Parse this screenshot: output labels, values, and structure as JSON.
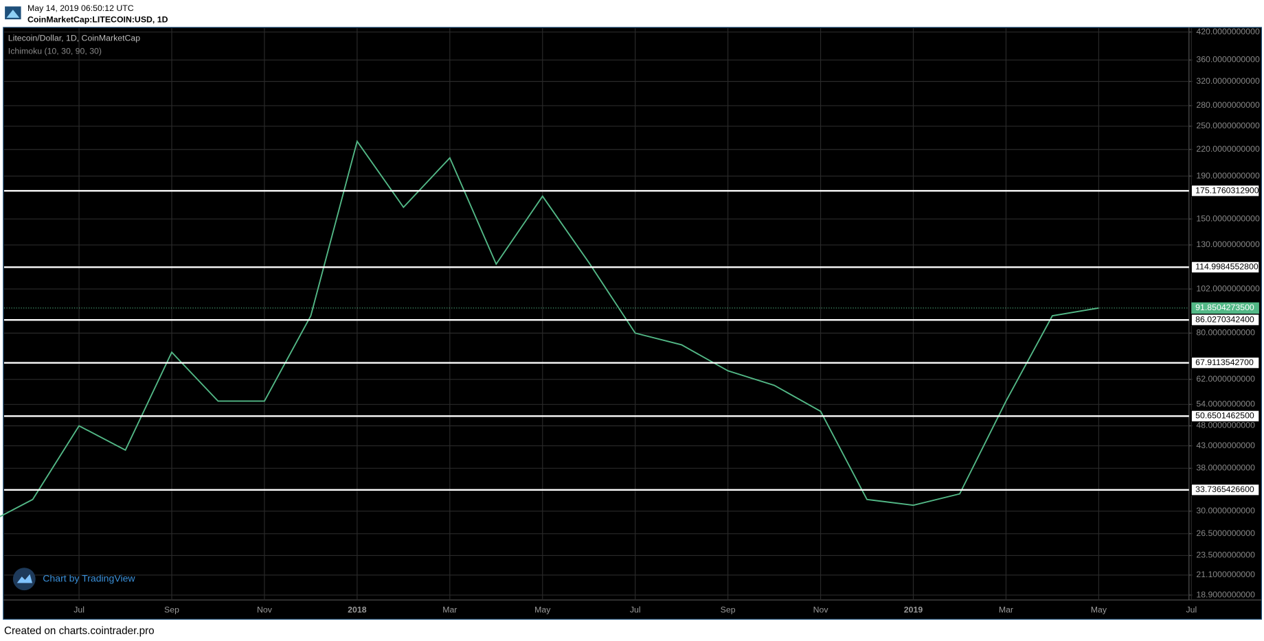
{
  "header": {
    "timestamp": "May 14, 2019 06:50:12 UTC",
    "symbol": "CoinMarketCap:LITECOIN:USD, 1D"
  },
  "footer": "Created on charts.cointrader.pro",
  "watermark": "Chart by TradingView",
  "chart_data": {
    "type": "line",
    "title": "Litecoin/Dollar, 1D, CoinMarketCap",
    "subtitle": "Ichimoku (10, 30, 90, 30)",
    "x": [
      "2017-05",
      "2017-06",
      "2017-07",
      "2017-08",
      "2017-09",
      "2017-10",
      "2017-11",
      "2017-12",
      "2018-01",
      "2018-02",
      "2018-03",
      "2018-04",
      "2018-05",
      "2018-06",
      "2018-07",
      "2018-08",
      "2018-09",
      "2018-10",
      "2018-11",
      "2018-12",
      "2019-01",
      "2019-02",
      "2019-03",
      "2019-04",
      "2019-05"
    ],
    "series": [
      {
        "name": "LTCUSD",
        "color": "#53b987",
        "values": [
          28,
          32,
          48,
          42,
          72,
          55,
          55,
          88,
          230,
          160,
          210,
          117,
          170,
          118,
          80,
          75,
          65,
          60,
          52,
          32,
          31,
          33,
          55,
          88,
          91.85
        ]
      }
    ],
    "log_scale": true,
    "grid": true,
    "ylim": [
      18.4,
      429
    ],
    "yticks": [
      {
        "value": 420,
        "label": "420.0000000000"
      },
      {
        "value": 360,
        "label": "360.0000000000"
      },
      {
        "value": 320,
        "label": "320.0000000000"
      },
      {
        "value": 280,
        "label": "280.0000000000"
      },
      {
        "value": 250,
        "label": "250.0000000000"
      },
      {
        "value": 220,
        "label": "220.0000000000"
      },
      {
        "value": 190,
        "label": "190.0000000000"
      },
      {
        "value": 150,
        "label": "150.0000000000"
      },
      {
        "value": 130,
        "label": "130.0000000000"
      },
      {
        "value": 102,
        "label": "102.0000000000"
      },
      {
        "value": 80,
        "label": "80.0000000000"
      },
      {
        "value": 62,
        "label": "62.0000000000"
      },
      {
        "value": 54,
        "label": "54.0000000000"
      },
      {
        "value": 48,
        "label": "48.0000000000"
      },
      {
        "value": 43,
        "label": "43.0000000000"
      },
      {
        "value": 38,
        "label": "38.0000000000"
      },
      {
        "value": 30,
        "label": "30.0000000000"
      },
      {
        "value": 26.5,
        "label": "26.5000000000"
      },
      {
        "value": 23.5,
        "label": "23.5000000000"
      },
      {
        "value": 21.1,
        "label": "21.1000000000"
      },
      {
        "value": 18.9,
        "label": "18.9000000000"
      }
    ],
    "xticks": [
      {
        "value": "2017-07",
        "label": "Jul"
      },
      {
        "value": "2017-09",
        "label": "Sep"
      },
      {
        "value": "2017-11",
        "label": "Nov"
      },
      {
        "value": "2018-01",
        "label": "2018"
      },
      {
        "value": "2018-03",
        "label": "Mar"
      },
      {
        "value": "2018-05",
        "label": "May"
      },
      {
        "value": "2018-07",
        "label": "Jul"
      },
      {
        "value": "2018-09",
        "label": "Sep"
      },
      {
        "value": "2018-11",
        "label": "Nov"
      },
      {
        "value": "2019-01",
        "label": "2019"
      },
      {
        "value": "2019-03",
        "label": "Mar"
      },
      {
        "value": "2019-05",
        "label": "May"
      },
      {
        "value": "2019-07",
        "label": "Jul"
      }
    ],
    "levels": [
      {
        "value": 175.17603129,
        "label": "175.1760312900"
      },
      {
        "value": 114.99845528,
        "label": "114.9984552800"
      },
      {
        "value": 86.02703424,
        "label": "86.0270342400"
      },
      {
        "value": 67.91135427,
        "label": "67.9113542700"
      },
      {
        "value": 50.65014625,
        "label": "50.6501462500"
      },
      {
        "value": 33.73654266,
        "label": "33.7365426600"
      }
    ],
    "last_price": {
      "value": 91.85042735,
      "label": "91.8504273500"
    }
  }
}
